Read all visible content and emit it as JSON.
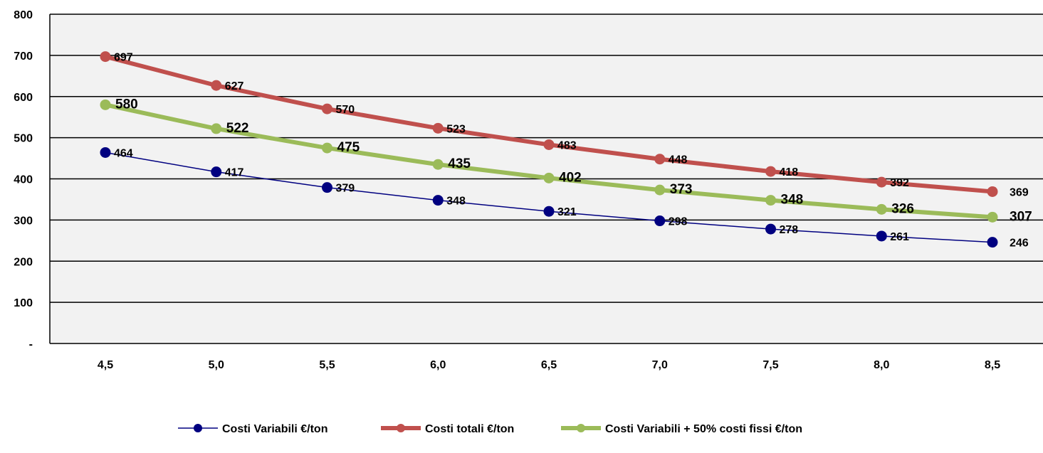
{
  "chart_data": {
    "type": "line",
    "title": "",
    "xlabel": "",
    "ylabel": "",
    "categories": [
      "4,5",
      "5,0",
      "5,5",
      "6,0",
      "6,5",
      "7,0",
      "7,5",
      "8,0",
      "8,5"
    ],
    "y_tick_labels": [
      "-",
      "100",
      "200",
      "300",
      "400",
      "500",
      "600",
      "700",
      "800"
    ],
    "ylim": [
      0,
      800
    ],
    "grid": "horizontal",
    "legend_position": "bottom",
    "series": [
      {
        "name": "Costi Variabili €/ton",
        "color": "#000080",
        "values": [
          464,
          417,
          379,
          348,
          321,
          298,
          278,
          261,
          246
        ]
      },
      {
        "name": "Costi totali €/ton",
        "color": "#c0504d",
        "values": [
          697,
          627,
          570,
          523,
          483,
          448,
          418,
          392,
          369
        ]
      },
      {
        "name": "Costi Variabili + 50% costi fissi €/ton",
        "color": "#9bbb59",
        "values": [
          580,
          522,
          475,
          435,
          402,
          373,
          348,
          326,
          307
        ]
      }
    ]
  }
}
